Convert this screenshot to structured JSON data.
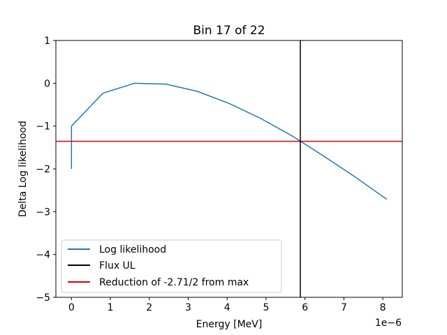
{
  "chart_data": {
    "type": "line",
    "title": "Bin 17 of 22",
    "xlabel": "Energy [MeV]",
    "ylabel": "Delta Log likelihood",
    "x_offset_label": "1e−6",
    "xlim": [
      -4e-07,
      8.5e-06
    ],
    "ylim": [
      -5,
      1
    ],
    "x_ticks": [
      0,
      1e-06,
      2e-06,
      3e-06,
      4e-06,
      5e-06,
      6e-06,
      7e-06,
      8e-06
    ],
    "x_tick_labels": [
      "0",
      "1",
      "2",
      "3",
      "4",
      "5",
      "6",
      "7",
      "8"
    ],
    "y_ticks": [
      1,
      0,
      -1,
      -2,
      -3,
      -4,
      -5
    ],
    "y_tick_labels": [
      "1",
      "0",
      "−1",
      "−2",
      "−3",
      "−4",
      "−5"
    ],
    "grid": false,
    "legend_position": "lower-left",
    "series": [
      {
        "name": "Log likelihood",
        "color": "#1f77b4",
        "x": [
          0,
          1e-09,
          8.1e-07,
          1.62e-06,
          2.43e-06,
          3.24e-06,
          4.05e-06,
          4.86e-06,
          5.67e-06,
          6.48e-06,
          7.29e-06,
          8.1e-06
        ],
        "y": [
          -2.0,
          -1.0,
          -0.23,
          0.0,
          -0.02,
          -0.19,
          -0.47,
          -0.82,
          -1.23,
          -1.7,
          -2.19,
          -2.71
        ]
      }
    ],
    "vlines": [
      {
        "name": "Flux UL",
        "color": "#000000",
        "x": 5.88e-06
      }
    ],
    "hlines": [
      {
        "name": "Reduction of -2.71/2 from max",
        "color": "#e00000",
        "y": -1.355
      }
    ]
  }
}
